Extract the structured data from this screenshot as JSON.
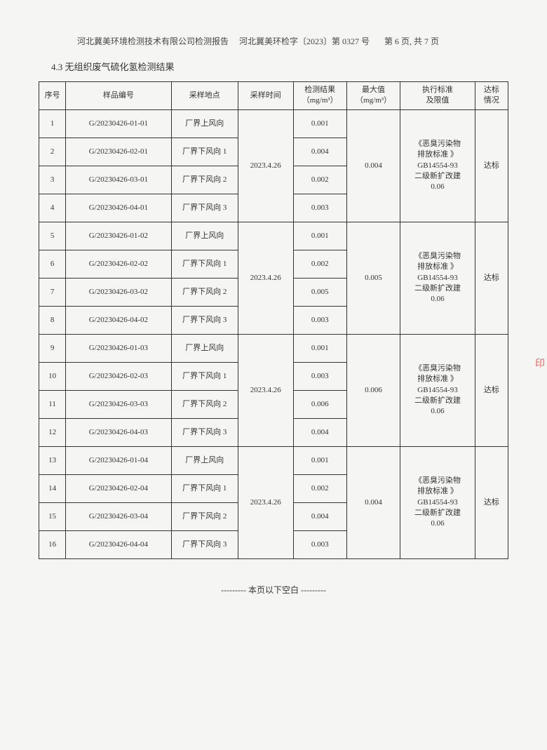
{
  "header": {
    "company": "河北冀美环境检测技术有限公司检测报告",
    "docno": "河北冀美环检字〔2023〕第 0327 号",
    "pageinfo": "第 6 页, 共 7 页"
  },
  "section_title": "4.3 无组织废气硫化氢检测结果",
  "columns": {
    "seq": "序号",
    "sample_id": "样品编号",
    "location": "采样地点",
    "time": "采样时间",
    "result": "检测结果",
    "result_unit": "（mg/m³）",
    "max": "最大值",
    "max_unit": "（mg/m³）",
    "standard": "执行标准\n及限值",
    "pass": "达标\n情况"
  },
  "standard_text": "《恶臭污染物排放标准 》GB14554-93二级新扩改建0.06",
  "pass_text": "达标",
  "groups": [
    {
      "time": "2023.4.26",
      "max": "0.004",
      "rows": [
        {
          "seq": "1",
          "id": "G/20230426-01-01",
          "loc": "厂界上风向",
          "res": "0.001"
        },
        {
          "seq": "2",
          "id": "G/20230426-02-01",
          "loc": "厂界下风向 1",
          "res": "0.004"
        },
        {
          "seq": "3",
          "id": "G/20230426-03-01",
          "loc": "厂界下风向 2",
          "res": "0.002"
        },
        {
          "seq": "4",
          "id": "G/20230426-04-01",
          "loc": "厂界下风向 3",
          "res": "0.003"
        }
      ]
    },
    {
      "time": "2023.4.26",
      "max": "0.005",
      "rows": [
        {
          "seq": "5",
          "id": "G/20230426-01-02",
          "loc": "厂界上风向",
          "res": "0.001"
        },
        {
          "seq": "6",
          "id": "G/20230426-02-02",
          "loc": "厂界下风向 1",
          "res": "0.002"
        },
        {
          "seq": "7",
          "id": "G/20230426-03-02",
          "loc": "厂界下风向 2",
          "res": "0.005"
        },
        {
          "seq": "8",
          "id": "G/20230426-04-02",
          "loc": "厂界下风向 3",
          "res": "0.003"
        }
      ]
    },
    {
      "time": "2023.4.26",
      "max": "0.006",
      "rows": [
        {
          "seq": "9",
          "id": "G/20230426-01-03",
          "loc": "厂界上风向",
          "res": "0.001"
        },
        {
          "seq": "10",
          "id": "G/20230426-02-03",
          "loc": "厂界下风向 1",
          "res": "0.003"
        },
        {
          "seq": "11",
          "id": "G/20230426-03-03",
          "loc": "厂界下风向 2",
          "res": "0.006"
        },
        {
          "seq": "12",
          "id": "G/20230426-04-03",
          "loc": "厂界下风向 3",
          "res": "0.004"
        }
      ]
    },
    {
      "time": "2023.4.26",
      "max": "0.004",
      "rows": [
        {
          "seq": "13",
          "id": "G/20230426-01-04",
          "loc": "厂界上风向",
          "res": "0.001"
        },
        {
          "seq": "14",
          "id": "G/20230426-02-04",
          "loc": "厂界下风向 1",
          "res": "0.002"
        },
        {
          "seq": "15",
          "id": "G/20230426-03-04",
          "loc": "厂界下风向 2",
          "res": "0.004"
        },
        {
          "seq": "16",
          "id": "G/20230426-04-04",
          "loc": "厂界下风向 3",
          "res": "0.003"
        }
      ]
    }
  ],
  "footer_blank": "--------- 本页以下空白 ---------",
  "stamp": "印"
}
